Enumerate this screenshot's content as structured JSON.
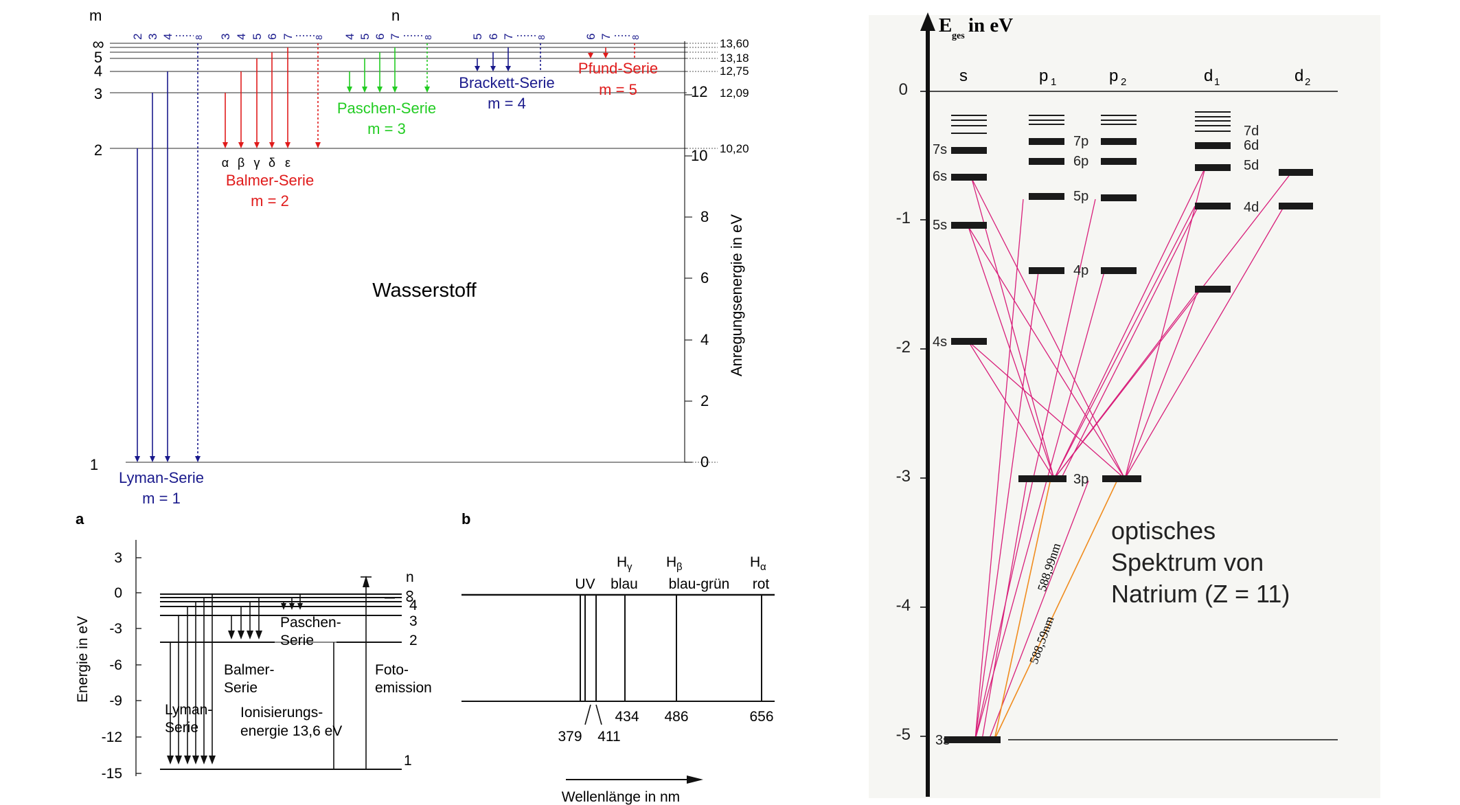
{
  "hydrogen": {
    "axis_m_title": "m",
    "axis_n_title": "n",
    "center_label": "Wasserstoff",
    "y_axis_label": "Anregungsenergie in eV",
    "m_labels": [
      "1",
      "2",
      "3",
      "4",
      "5",
      "∞"
    ],
    "tick_labels": [
      "0",
      "2",
      "4",
      "6",
      "8",
      "10",
      "12"
    ],
    "level_values": [
      "13,60",
      "13,18",
      "12,75",
      "12,09",
      "10,20"
    ],
    "series": [
      {
        "name": "Lyman-Serie",
        "m": "m = 1",
        "color": "#1a1a8c",
        "n_labels": [
          "2",
          "3",
          "4",
          "8"
        ]
      },
      {
        "name": "Balmer-Serie",
        "m": "m = 2",
        "color": "#e01b1b",
        "n_labels": [
          "3",
          "4",
          "5",
          "6",
          "7",
          "8"
        ],
        "greek": [
          "α",
          "β",
          "γ",
          "δ",
          "ε"
        ]
      },
      {
        "name": "Paschen-Serie",
        "m": "m = 3",
        "color": "#22cc22",
        "n_labels": [
          "4",
          "5",
          "6",
          "7",
          "8"
        ]
      },
      {
        "name": "Brackett-Serie",
        "m": "m = 4",
        "color": "#1a1a8c",
        "n_labels": [
          "5",
          "6",
          "7",
          "8"
        ]
      },
      {
        "name": "Pfund-Serie",
        "m": "m = 5",
        "color": "#e01b1b",
        "n_labels": [
          "6",
          "7",
          "8"
        ]
      }
    ]
  },
  "panel_a": {
    "letter": "a",
    "y_label": "Energie in eV",
    "ticks": [
      "3",
      "0",
      "-3",
      "-6",
      "-9",
      "-12",
      "-15"
    ],
    "n_labels": [
      "n",
      "∞",
      "4",
      "3",
      "2",
      "1"
    ],
    "lyman": [
      "Lyman-",
      "Serie"
    ],
    "balmer": [
      "Balmer-",
      "Serie"
    ],
    "paschen": [
      "Paschen-",
      "Serie"
    ],
    "ionisation": [
      "Ionisierungs-",
      "energie 13,6 eV"
    ],
    "foto": [
      "Foto-",
      "emission"
    ]
  },
  "panel_b": {
    "letter": "b",
    "x_label": "Wellenlänge in nm",
    "uv": "UV",
    "lines": [
      {
        "name": "H",
        "sub": "γ",
        "color_name": "blau",
        "value": "434"
      },
      {
        "name": "H",
        "sub": "β",
        "color_name": "blau-grün",
        "value": "486"
      },
      {
        "name": "H",
        "sub": "α",
        "color_name": "rot",
        "value": "656"
      }
    ],
    "uv_values": [
      "379",
      "411"
    ]
  },
  "sodium": {
    "axis_title_main": "E",
    "axis_title_sub": "ges",
    "axis_title_rest": " in eV",
    "ticks": [
      "0",
      "-1",
      "-2",
      "-3",
      "-4",
      "-5"
    ],
    "columns": [
      {
        "label": "s",
        "sub": ""
      },
      {
        "label": "p",
        "sub": "1"
      },
      {
        "label": "p",
        "sub": "2"
      },
      {
        "label": "d",
        "sub": "1"
      },
      {
        "label": "d",
        "sub": "2"
      }
    ],
    "level_labels": [
      "3s",
      "4s",
      "5s",
      "6s",
      "7s",
      "3p",
      "4p",
      "5p",
      "6p",
      "7p",
      "4d",
      "5d",
      "6d",
      "7d"
    ],
    "d_lines": [
      "588,99nm",
      "588,59nm"
    ],
    "title_lines": [
      "optisches",
      "Spektrum von",
      "Natrium (Z = 11)"
    ],
    "line_color": "#d81e7a",
    "dline_color": "#f08c1e"
  }
}
